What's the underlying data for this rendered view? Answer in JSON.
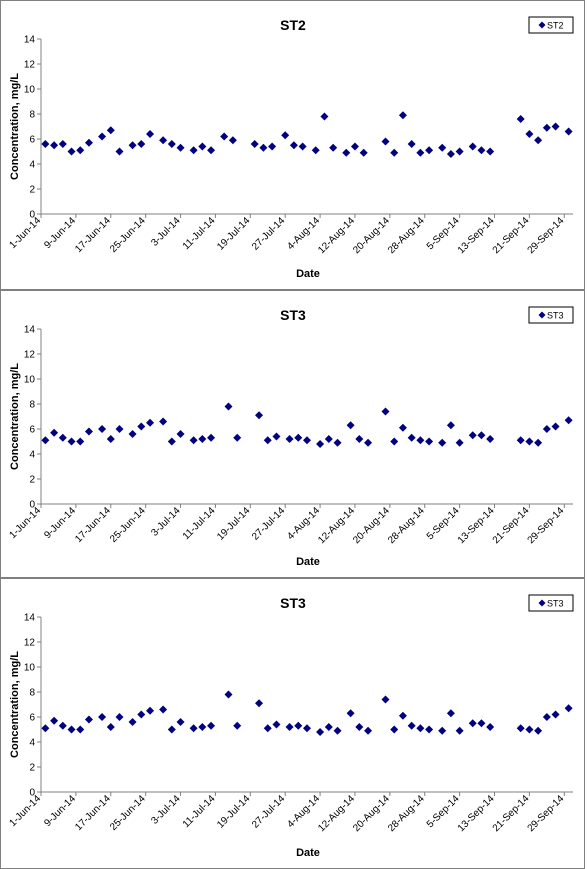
{
  "colors": {
    "marker": "#000080",
    "axis": "#808080",
    "frame": "#808080"
  },
  "chart_data": [
    {
      "type": "scatter",
      "title": "ST2",
      "xlabel": "Date",
      "ylabel": "Concentration, mg/L",
      "ylim": [
        0,
        14
      ],
      "yticks": [
        0,
        2,
        4,
        6,
        8,
        10,
        12,
        14
      ],
      "xlim": [
        "2014-06-01",
        "2014-10-01"
      ],
      "xtick_labels": [
        "1-Jun-14",
        "9-Jun-14",
        "17-Jun-14",
        "25-Jun-14",
        "3-Jul-14",
        "11-Jul-14",
        "19-Jul-14",
        "27-Jul-14",
        "4-Aug-14",
        "12-Aug-14",
        "20-Aug-14",
        "28-Aug-14",
        "5-Sep-14",
        "13-Sep-14",
        "21-Sep-14",
        "29-Sep-14"
      ],
      "grid": false,
      "legend": "top-right",
      "series": [
        {
          "name": "ST2",
          "x": [
            "2014-06-02",
            "2014-06-04",
            "2014-06-06",
            "2014-06-08",
            "2014-06-10",
            "2014-06-12",
            "2014-06-15",
            "2014-06-17",
            "2014-06-19",
            "2014-06-22",
            "2014-06-24",
            "2014-06-26",
            "2014-06-29",
            "2014-07-01",
            "2014-07-03",
            "2014-07-06",
            "2014-07-08",
            "2014-07-10",
            "2014-07-13",
            "2014-07-15",
            "2014-07-20",
            "2014-07-22",
            "2014-07-24",
            "2014-07-27",
            "2014-07-29",
            "2014-07-31",
            "2014-08-03",
            "2014-08-05",
            "2014-08-07",
            "2014-08-10",
            "2014-08-12",
            "2014-08-14",
            "2014-08-19",
            "2014-08-21",
            "2014-08-23",
            "2014-08-25",
            "2014-08-27",
            "2014-08-29",
            "2014-09-01",
            "2014-09-03",
            "2014-09-05",
            "2014-09-08",
            "2014-09-10",
            "2014-09-12",
            "2014-09-19",
            "2014-09-21",
            "2014-09-23",
            "2014-09-25",
            "2014-09-27",
            "2014-09-30"
          ],
          "y": [
            5.6,
            5.5,
            5.6,
            5.0,
            5.1,
            5.7,
            6.2,
            6.7,
            5.0,
            5.5,
            5.6,
            6.4,
            5.9,
            5.6,
            5.3,
            5.1,
            5.4,
            5.1,
            6.2,
            5.9,
            5.6,
            5.3,
            5.4,
            6.3,
            5.5,
            5.4,
            5.1,
            7.8,
            5.3,
            4.9,
            5.4,
            4.9,
            5.8,
            4.9,
            7.9,
            5.6,
            4.9,
            5.1,
            5.3,
            4.8,
            5.0,
            5.4,
            5.1,
            5.0,
            7.6,
            6.4,
            5.9,
            6.9,
            7.0,
            6.6
          ]
        }
      ]
    },
    {
      "type": "scatter",
      "title": "ST3",
      "xlabel": "Date",
      "ylabel": "Concentration, mg/L",
      "ylim": [
        0,
        14
      ],
      "yticks": [
        0,
        2,
        4,
        6,
        8,
        10,
        12,
        14
      ],
      "xlim": [
        "2014-06-01",
        "2014-10-01"
      ],
      "xtick_labels": [
        "1-Jun-14",
        "9-Jun-14",
        "17-Jun-14",
        "25-Jun-14",
        "3-Jul-14",
        "11-Jul-14",
        "19-Jul-14",
        "27-Jul-14",
        "4-Aug-14",
        "12-Aug-14",
        "20-Aug-14",
        "28-Aug-14",
        "5-Sep-14",
        "13-Sep-14",
        "21-Sep-14",
        "29-Sep-14"
      ],
      "grid": false,
      "legend": "top-right",
      "series": [
        {
          "name": "ST3",
          "x": [
            "2014-06-02",
            "2014-06-04",
            "2014-06-06",
            "2014-06-08",
            "2014-06-10",
            "2014-06-12",
            "2014-06-15",
            "2014-06-17",
            "2014-06-19",
            "2014-06-22",
            "2014-06-24",
            "2014-06-26",
            "2014-06-29",
            "2014-07-01",
            "2014-07-03",
            "2014-07-06",
            "2014-07-08",
            "2014-07-10",
            "2014-07-14",
            "2014-07-16",
            "2014-07-21",
            "2014-07-23",
            "2014-07-25",
            "2014-07-28",
            "2014-07-30",
            "2014-08-01",
            "2014-08-04",
            "2014-08-06",
            "2014-08-08",
            "2014-08-11",
            "2014-08-13",
            "2014-08-15",
            "2014-08-19",
            "2014-08-21",
            "2014-08-23",
            "2014-08-25",
            "2014-08-27",
            "2014-08-29",
            "2014-09-01",
            "2014-09-03",
            "2014-09-05",
            "2014-09-08",
            "2014-09-10",
            "2014-09-12",
            "2014-09-19",
            "2014-09-21",
            "2014-09-23",
            "2014-09-25",
            "2014-09-27",
            "2014-09-30"
          ],
          "y": [
            5.1,
            5.7,
            5.3,
            5.0,
            5.0,
            5.8,
            6.0,
            5.2,
            6.0,
            5.6,
            6.2,
            6.5,
            6.6,
            5.0,
            5.6,
            5.1,
            5.2,
            5.3,
            7.8,
            5.3,
            7.1,
            5.1,
            5.4,
            5.2,
            5.3,
            5.1,
            4.8,
            5.2,
            4.9,
            6.3,
            5.2,
            4.9,
            7.4,
            5.0,
            6.1,
            5.3,
            5.1,
            5.0,
            4.9,
            6.3,
            4.9,
            5.5,
            5.5,
            5.2,
            5.1,
            5.0,
            4.9,
            6.0,
            6.2,
            6.7
          ]
        }
      ]
    },
    {
      "type": "scatter",
      "title": "ST3",
      "xlabel": "Date",
      "ylabel": "Concentration, mg/L",
      "ylim": [
        0,
        14
      ],
      "yticks": [
        0,
        2,
        4,
        6,
        8,
        10,
        12,
        14
      ],
      "xlim": [
        "2014-06-01",
        "2014-10-01"
      ],
      "xtick_labels": [
        "1-Jun-14",
        "9-Jun-14",
        "17-Jun-14",
        "25-Jun-14",
        "3-Jul-14",
        "11-Jul-14",
        "19-Jul-14",
        "27-Jul-14",
        "4-Aug-14",
        "12-Aug-14",
        "20-Aug-14",
        "28-Aug-14",
        "5-Sep-14",
        "13-Sep-14",
        "21-Sep-14",
        "29-Sep-14"
      ],
      "grid": false,
      "legend": "top-right",
      "series": [
        {
          "name": "ST3",
          "x": [
            "2014-06-02",
            "2014-06-04",
            "2014-06-06",
            "2014-06-08",
            "2014-06-10",
            "2014-06-12",
            "2014-06-15",
            "2014-06-17",
            "2014-06-19",
            "2014-06-22",
            "2014-06-24",
            "2014-06-26",
            "2014-06-29",
            "2014-07-01",
            "2014-07-03",
            "2014-07-06",
            "2014-07-08",
            "2014-07-10",
            "2014-07-14",
            "2014-07-16",
            "2014-07-21",
            "2014-07-23",
            "2014-07-25",
            "2014-07-28",
            "2014-07-30",
            "2014-08-01",
            "2014-08-04",
            "2014-08-06",
            "2014-08-08",
            "2014-08-11",
            "2014-08-13",
            "2014-08-15",
            "2014-08-19",
            "2014-08-21",
            "2014-08-23",
            "2014-08-25",
            "2014-08-27",
            "2014-08-29",
            "2014-09-01",
            "2014-09-03",
            "2014-09-05",
            "2014-09-08",
            "2014-09-10",
            "2014-09-12",
            "2014-09-19",
            "2014-09-21",
            "2014-09-23",
            "2014-09-25",
            "2014-09-27",
            "2014-09-30"
          ],
          "y": [
            5.1,
            5.7,
            5.3,
            5.0,
            5.0,
            5.8,
            6.0,
            5.2,
            6.0,
            5.6,
            6.2,
            6.5,
            6.6,
            5.0,
            5.6,
            5.1,
            5.2,
            5.3,
            7.8,
            5.3,
            7.1,
            5.1,
            5.4,
            5.2,
            5.3,
            5.1,
            4.8,
            5.2,
            4.9,
            6.3,
            5.2,
            4.9,
            7.4,
            5.0,
            6.1,
            5.3,
            5.1,
            5.0,
            4.9,
            6.3,
            4.9,
            5.5,
            5.5,
            5.2,
            5.1,
            5.0,
            4.9,
            6.0,
            6.2,
            6.7
          ]
        }
      ]
    }
  ]
}
